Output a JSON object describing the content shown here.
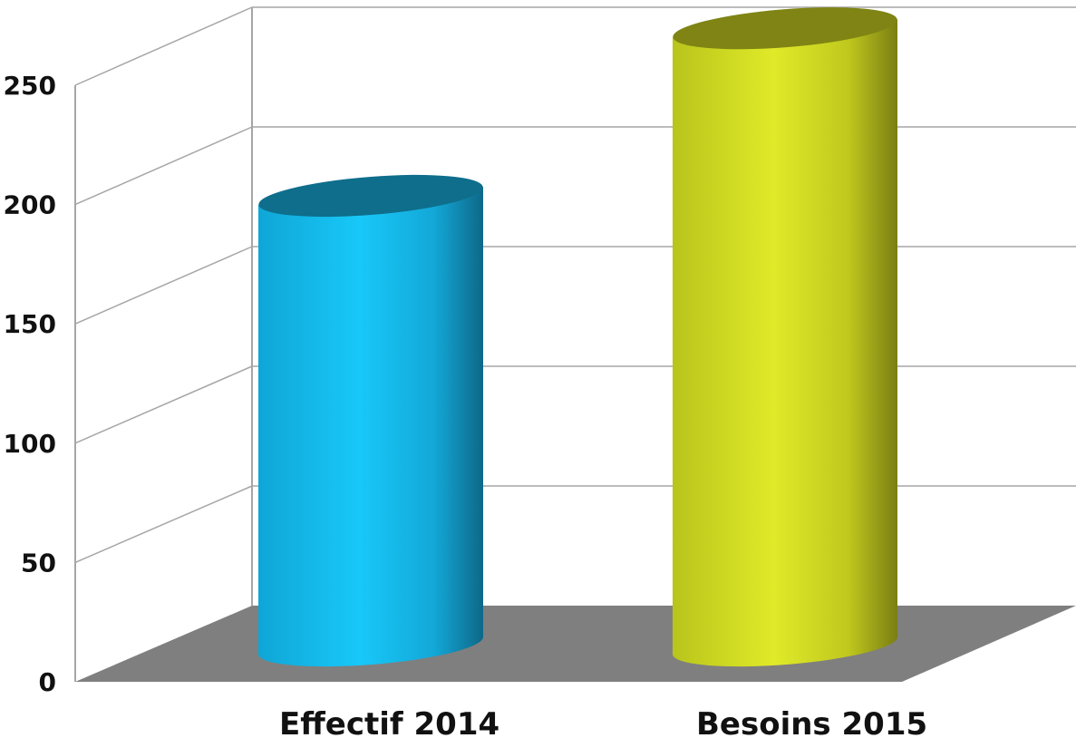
{
  "chart_data": {
    "type": "bar",
    "style": "3d-cylinder",
    "categories": [
      "Effectif 2014",
      "Besoins 2015"
    ],
    "values": [
      175,
      245
    ],
    "colors": [
      "#18c8f8",
      "#e0ea28"
    ],
    "ylim": [
      0,
      250
    ],
    "yticks": [
      "0",
      "50",
      "100",
      "150",
      "200",
      "250"
    ],
    "grid": true,
    "legend": "none",
    "title": "",
    "xlabel": "",
    "ylabel": ""
  }
}
